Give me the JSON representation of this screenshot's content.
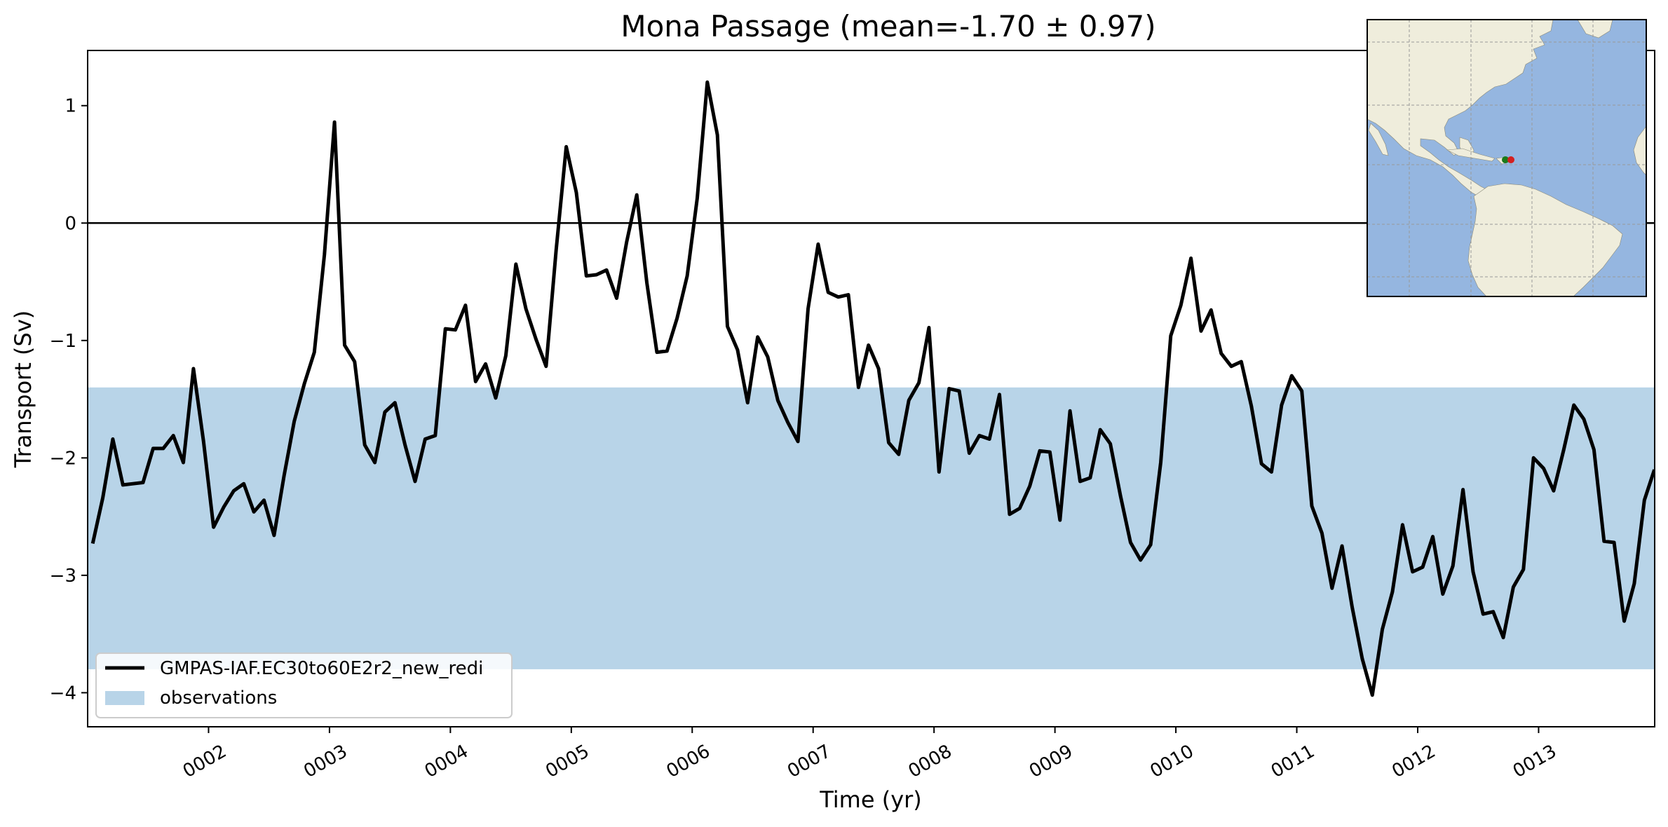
{
  "chart_data": {
    "type": "line",
    "title": "Mona Passage (mean=-1.70 ± 0.97)",
    "xlabel": "Time (yr)",
    "ylabel": "Transport (Sv)",
    "xlim": [
      1.0,
      13.96
    ],
    "ylim": [
      -4.29,
      1.47
    ],
    "x_ticks": [
      2,
      3,
      4,
      5,
      6,
      7,
      8,
      9,
      10,
      11,
      12,
      13
    ],
    "x_tick_labels": [
      "0002",
      "0003",
      "0004",
      "0005",
      "0006",
      "0007",
      "0008",
      "0009",
      "0010",
      "0011",
      "0012",
      "0013"
    ],
    "y_ticks": [
      -4,
      -3,
      -2,
      -1,
      0,
      1
    ],
    "y_tick_labels": [
      "−4",
      "−3",
      "−2",
      "−1",
      "0",
      "1"
    ],
    "observation_band": {
      "label": "observations",
      "ymin": -3.8,
      "ymax": -1.4,
      "color": "#b8d4e8"
    },
    "zero_line": true,
    "grid": false,
    "legend_position": "lower-left",
    "series": [
      {
        "name": "GMPAS-IAF.EC30to60E2r2_new_redi",
        "color": "#000000",
        "x_start": 1.0417,
        "x_step": 0.08333,
        "values": [
          -2.73,
          -2.34,
          -1.84,
          -2.23,
          -2.22,
          -2.21,
          -1.92,
          -1.92,
          -1.81,
          -2.04,
          -1.24,
          -1.86,
          -2.59,
          -2.42,
          -2.28,
          -2.22,
          -2.46,
          -2.36,
          -2.66,
          -2.15,
          -1.69,
          -1.37,
          -1.1,
          -0.27,
          0.86,
          -1.04,
          -1.18,
          -1.89,
          -2.04,
          -1.61,
          -1.53,
          -1.89,
          -2.2,
          -1.84,
          -1.81,
          -0.9,
          -0.91,
          -0.7,
          -1.35,
          -1.2,
          -1.49,
          -1.13,
          -0.35,
          -0.73,
          -0.99,
          -1.22,
          -0.23,
          0.65,
          0.26,
          -0.45,
          -0.44,
          -0.4,
          -0.64,
          -0.16,
          0.24,
          -0.51,
          -1.1,
          -1.09,
          -0.81,
          -0.45,
          0.21,
          1.2,
          0.75,
          -0.88,
          -1.08,
          -1.53,
          -0.97,
          -1.14,
          -1.51,
          -1.7,
          -1.86,
          -0.73,
          -0.18,
          -0.59,
          -0.63,
          -0.61,
          -1.4,
          -1.04,
          -1.24,
          -1.87,
          -1.97,
          -1.51,
          -1.36,
          -0.89,
          -2.12,
          -1.41,
          -1.43,
          -1.96,
          -1.81,
          -1.84,
          -1.46,
          -2.48,
          -2.43,
          -2.24,
          -1.94,
          -1.95,
          -2.53,
          -1.6,
          -2.2,
          -2.17,
          -1.76,
          -1.88,
          -2.32,
          -2.72,
          -2.87,
          -2.74,
          -2.04,
          -0.96,
          -0.7,
          -0.3,
          -0.92,
          -0.74,
          -1.11,
          -1.22,
          -1.18,
          -1.56,
          -2.05,
          -2.12,
          -1.55,
          -1.3,
          -1.43,
          -2.41,
          -2.64,
          -3.11,
          -2.75,
          -3.27,
          -3.71,
          -4.02,
          -3.46,
          -3.14,
          -2.57,
          -2.97,
          -2.93,
          -2.67,
          -3.16,
          -2.92,
          -2.27,
          -2.97,
          -3.33,
          -3.31,
          -3.53,
          -3.1,
          -2.95,
          -2.0,
          -2.09,
          -2.28,
          -1.93,
          -1.55,
          -1.67,
          -1.93,
          -2.71,
          -2.72,
          -3.39,
          -3.07,
          -2.36,
          -2.1
        ]
      }
    ]
  },
  "inset_map": {
    "land_color": "#efeddc",
    "ocean_color": "#95b6e0",
    "marker_colors": [
      "#1a7a1a",
      "#d42020"
    ]
  }
}
